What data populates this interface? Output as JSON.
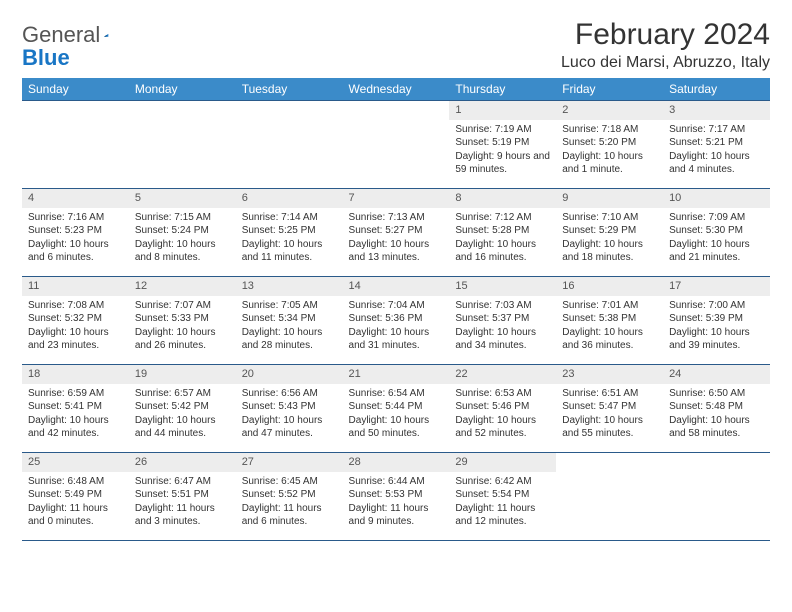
{
  "logo": {
    "text1": "General",
    "text2": "Blue"
  },
  "title": "February 2024",
  "location": "Luco dei Marsi, Abruzzo, Italy",
  "colors": {
    "header_bg": "#3b8bc9",
    "header_text": "#ffffff",
    "border": "#2a5a8a",
    "daynum_bg": "#ededed",
    "logo_blue": "#1976c5"
  },
  "weekdays": [
    "Sunday",
    "Monday",
    "Tuesday",
    "Wednesday",
    "Thursday",
    "Friday",
    "Saturday"
  ],
  "weeks": [
    [
      {
        "empty": true
      },
      {
        "empty": true
      },
      {
        "empty": true
      },
      {
        "empty": true
      },
      {
        "day": "1",
        "sunrise": "Sunrise: 7:19 AM",
        "sunset": "Sunset: 5:19 PM",
        "daylight": "Daylight: 9 hours and 59 minutes."
      },
      {
        "day": "2",
        "sunrise": "Sunrise: 7:18 AM",
        "sunset": "Sunset: 5:20 PM",
        "daylight": "Daylight: 10 hours and 1 minute."
      },
      {
        "day": "3",
        "sunrise": "Sunrise: 7:17 AM",
        "sunset": "Sunset: 5:21 PM",
        "daylight": "Daylight: 10 hours and 4 minutes."
      }
    ],
    [
      {
        "day": "4",
        "sunrise": "Sunrise: 7:16 AM",
        "sunset": "Sunset: 5:23 PM",
        "daylight": "Daylight: 10 hours and 6 minutes."
      },
      {
        "day": "5",
        "sunrise": "Sunrise: 7:15 AM",
        "sunset": "Sunset: 5:24 PM",
        "daylight": "Daylight: 10 hours and 8 minutes."
      },
      {
        "day": "6",
        "sunrise": "Sunrise: 7:14 AM",
        "sunset": "Sunset: 5:25 PM",
        "daylight": "Daylight: 10 hours and 11 minutes."
      },
      {
        "day": "7",
        "sunrise": "Sunrise: 7:13 AM",
        "sunset": "Sunset: 5:27 PM",
        "daylight": "Daylight: 10 hours and 13 minutes."
      },
      {
        "day": "8",
        "sunrise": "Sunrise: 7:12 AM",
        "sunset": "Sunset: 5:28 PM",
        "daylight": "Daylight: 10 hours and 16 minutes."
      },
      {
        "day": "9",
        "sunrise": "Sunrise: 7:10 AM",
        "sunset": "Sunset: 5:29 PM",
        "daylight": "Daylight: 10 hours and 18 minutes."
      },
      {
        "day": "10",
        "sunrise": "Sunrise: 7:09 AM",
        "sunset": "Sunset: 5:30 PM",
        "daylight": "Daylight: 10 hours and 21 minutes."
      }
    ],
    [
      {
        "day": "11",
        "sunrise": "Sunrise: 7:08 AM",
        "sunset": "Sunset: 5:32 PM",
        "daylight": "Daylight: 10 hours and 23 minutes."
      },
      {
        "day": "12",
        "sunrise": "Sunrise: 7:07 AM",
        "sunset": "Sunset: 5:33 PM",
        "daylight": "Daylight: 10 hours and 26 minutes."
      },
      {
        "day": "13",
        "sunrise": "Sunrise: 7:05 AM",
        "sunset": "Sunset: 5:34 PM",
        "daylight": "Daylight: 10 hours and 28 minutes."
      },
      {
        "day": "14",
        "sunrise": "Sunrise: 7:04 AM",
        "sunset": "Sunset: 5:36 PM",
        "daylight": "Daylight: 10 hours and 31 minutes."
      },
      {
        "day": "15",
        "sunrise": "Sunrise: 7:03 AM",
        "sunset": "Sunset: 5:37 PM",
        "daylight": "Daylight: 10 hours and 34 minutes."
      },
      {
        "day": "16",
        "sunrise": "Sunrise: 7:01 AM",
        "sunset": "Sunset: 5:38 PM",
        "daylight": "Daylight: 10 hours and 36 minutes."
      },
      {
        "day": "17",
        "sunrise": "Sunrise: 7:00 AM",
        "sunset": "Sunset: 5:39 PM",
        "daylight": "Daylight: 10 hours and 39 minutes."
      }
    ],
    [
      {
        "day": "18",
        "sunrise": "Sunrise: 6:59 AM",
        "sunset": "Sunset: 5:41 PM",
        "daylight": "Daylight: 10 hours and 42 minutes."
      },
      {
        "day": "19",
        "sunrise": "Sunrise: 6:57 AM",
        "sunset": "Sunset: 5:42 PM",
        "daylight": "Daylight: 10 hours and 44 minutes."
      },
      {
        "day": "20",
        "sunrise": "Sunrise: 6:56 AM",
        "sunset": "Sunset: 5:43 PM",
        "daylight": "Daylight: 10 hours and 47 minutes."
      },
      {
        "day": "21",
        "sunrise": "Sunrise: 6:54 AM",
        "sunset": "Sunset: 5:44 PM",
        "daylight": "Daylight: 10 hours and 50 minutes."
      },
      {
        "day": "22",
        "sunrise": "Sunrise: 6:53 AM",
        "sunset": "Sunset: 5:46 PM",
        "daylight": "Daylight: 10 hours and 52 minutes."
      },
      {
        "day": "23",
        "sunrise": "Sunrise: 6:51 AM",
        "sunset": "Sunset: 5:47 PM",
        "daylight": "Daylight: 10 hours and 55 minutes."
      },
      {
        "day": "24",
        "sunrise": "Sunrise: 6:50 AM",
        "sunset": "Sunset: 5:48 PM",
        "daylight": "Daylight: 10 hours and 58 minutes."
      }
    ],
    [
      {
        "day": "25",
        "sunrise": "Sunrise: 6:48 AM",
        "sunset": "Sunset: 5:49 PM",
        "daylight": "Daylight: 11 hours and 0 minutes."
      },
      {
        "day": "26",
        "sunrise": "Sunrise: 6:47 AM",
        "sunset": "Sunset: 5:51 PM",
        "daylight": "Daylight: 11 hours and 3 minutes."
      },
      {
        "day": "27",
        "sunrise": "Sunrise: 6:45 AM",
        "sunset": "Sunset: 5:52 PM",
        "daylight": "Daylight: 11 hours and 6 minutes."
      },
      {
        "day": "28",
        "sunrise": "Sunrise: 6:44 AM",
        "sunset": "Sunset: 5:53 PM",
        "daylight": "Daylight: 11 hours and 9 minutes."
      },
      {
        "day": "29",
        "sunrise": "Sunrise: 6:42 AM",
        "sunset": "Sunset: 5:54 PM",
        "daylight": "Daylight: 11 hours and 12 minutes."
      },
      {
        "empty": true
      },
      {
        "empty": true
      }
    ]
  ]
}
